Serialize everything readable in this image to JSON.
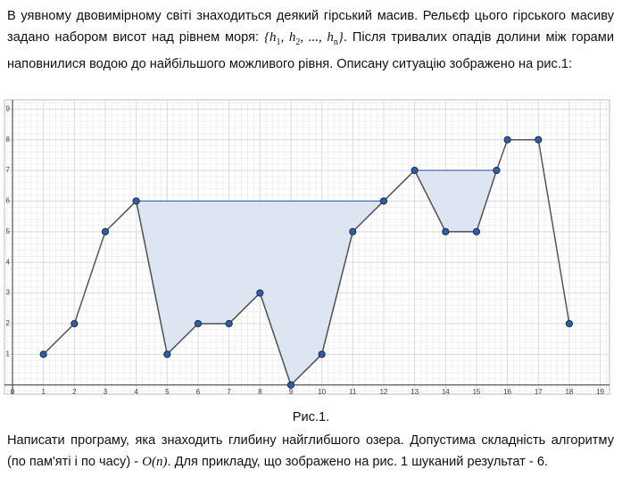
{
  "intro": {
    "text": "В уявному двовимірному світі знаходиться деякий гірський масив. Рельєф цього гірського масиву задано набором висот над рівнем моря: ",
    "formula": [
      {
        "text": "{"
      },
      {
        "text": "h",
        "sub": "1"
      },
      {
        "text": ", "
      },
      {
        "text": "h",
        "sub": "2"
      },
      {
        "text": ", ..., "
      },
      {
        "text": "h",
        "sub": "n"
      },
      {
        "text": "}"
      }
    ],
    "text_after": ". Після тривалих опадів долини між горами наповнилися водою до найбільшого можливого рівня. Описану ситуацію зображено на рис.1:"
  },
  "chart_data": {
    "type": "line",
    "x": [
      1,
      2,
      3,
      4,
      5,
      6,
      7,
      8,
      9,
      10,
      11,
      12,
      13,
      14,
      15,
      15.65,
      16,
      17,
      18
    ],
    "values": [
      1,
      2,
      5,
      6,
      1,
      2,
      2,
      3,
      0,
      1,
      5,
      6,
      7,
      5,
      5,
      7,
      8,
      8,
      2
    ],
    "color": "#555555",
    "point_color": "#2f5ea9",
    "water_color": "#dce5f1",
    "water_edge_color": "#3c5fa6",
    "xlim": [
      -0.26,
      19.3
    ],
    "ylim": [
      -0.3,
      9.3
    ],
    "xticks": [
      0,
      1,
      2,
      3,
      4,
      5,
      6,
      7,
      8,
      9,
      10,
      11,
      12,
      13,
      14,
      15,
      16,
      17,
      18,
      19
    ],
    "yticks": [
      1,
      2,
      3,
      4,
      5,
      6,
      7,
      8,
      9
    ],
    "grid": true
  },
  "caption": "Рис.1.",
  "task": {
    "text": "Написати програму, яка знаходить глибину найглибшого озера. Допустима складність алгоритму (по пам'яті і по часу) - ",
    "complexity": "O(n)",
    "text_after": ". Для прикладу, що зображено на рис. 1 шуканий результат - 6."
  }
}
